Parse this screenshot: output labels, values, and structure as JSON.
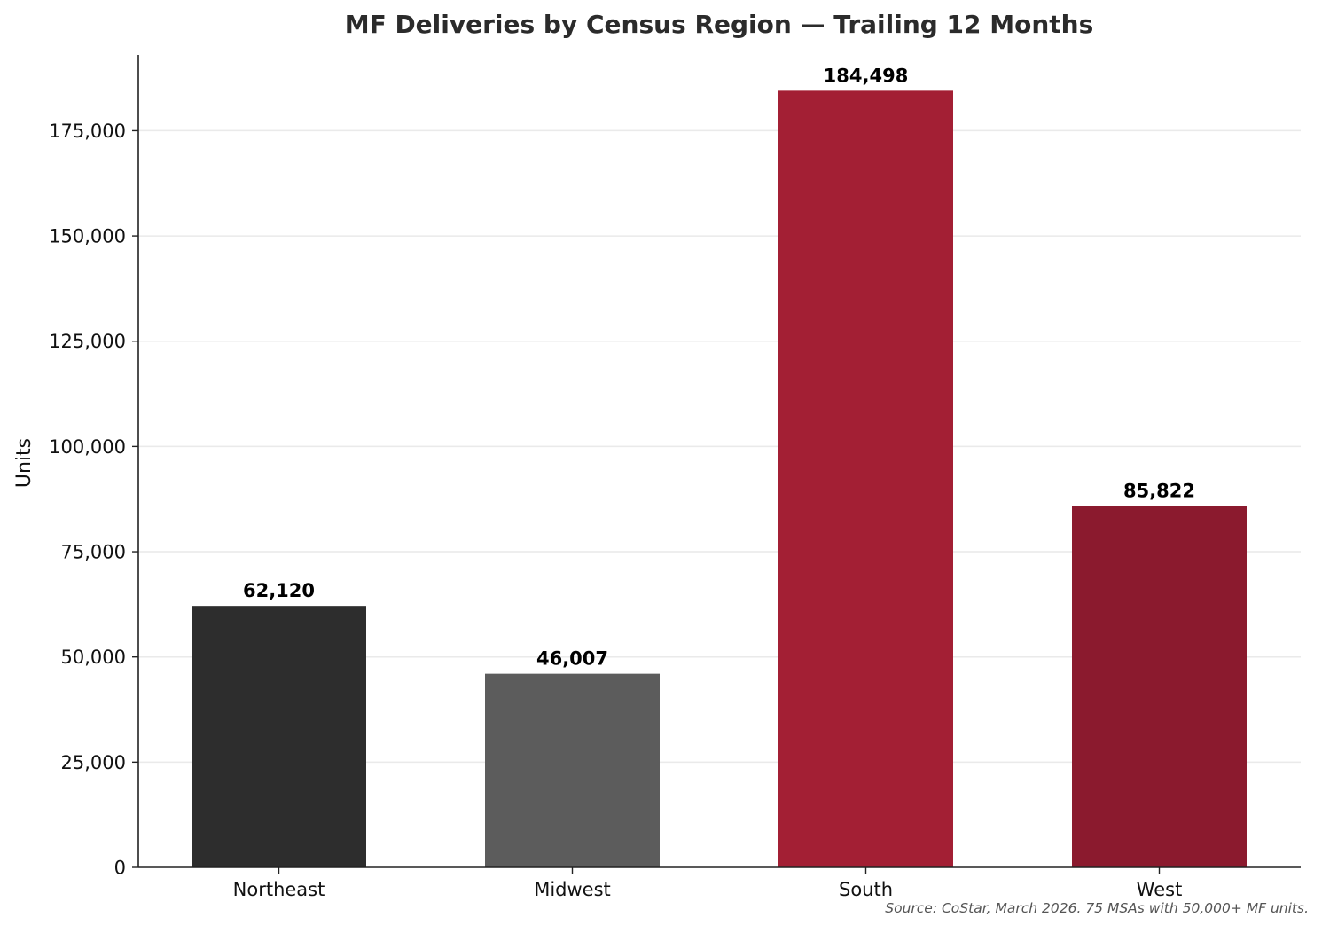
{
  "chart_data": {
    "type": "bar",
    "title": "MF Deliveries by Census Region — Trailing 12 Months",
    "xlabel": "",
    "ylabel": "Units",
    "categories": [
      "Northeast",
      "Midwest",
      "South",
      "West"
    ],
    "values": [
      62120,
      46007,
      184498,
      85822
    ],
    "data_labels": [
      "62,120",
      "46,007",
      "184,498",
      "85,822"
    ],
    "bar_colors": [
      "#2d2d2d",
      "#5c5c5c",
      "#a31f34",
      "#8b1a2e"
    ],
    "ylim": [
      0,
      193000
    ],
    "y_ticks": [
      0,
      25000,
      50000,
      75000,
      100000,
      125000,
      150000,
      175000
    ],
    "y_tick_labels": [
      "0",
      "25,000",
      "50,000",
      "75,000",
      "100,000",
      "125,000",
      "150,000",
      "175,000"
    ],
    "grid": "horizontal",
    "grid_color": "#e6e6e6",
    "axis_color": "#222222",
    "legend": "none",
    "source_note": "Source: CoStar, March 2026. 75 MSAs with 50,000+ MF units."
  }
}
